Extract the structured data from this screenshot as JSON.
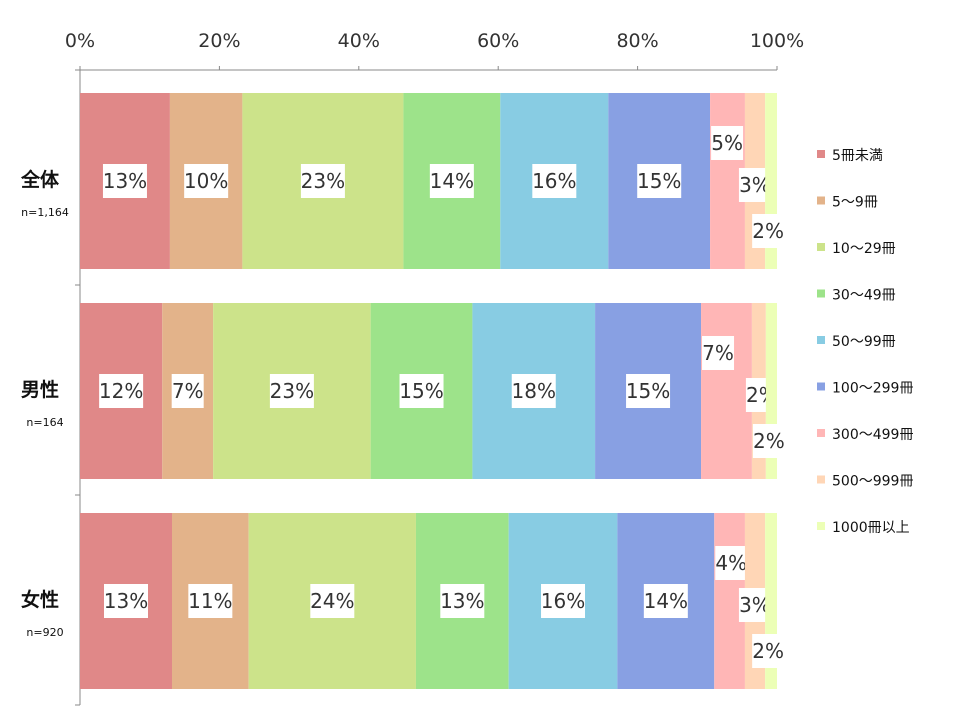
{
  "chart_data": {
    "type": "bar",
    "orientation": "horizontal",
    "stacked": true,
    "percent": true,
    "xlim": [
      0,
      100
    ],
    "x_ticks": [
      "0%",
      "20%",
      "40%",
      "60%",
      "80%",
      "100%"
    ],
    "grid": false,
    "legend_position": "right",
    "categories": [
      {
        "label": "全体",
        "n": "n=1,164"
      },
      {
        "label": "男性",
        "n": "n=164"
      },
      {
        "label": "女性",
        "n": "n=920"
      }
    ],
    "series": [
      {
        "name": "5冊未満",
        "color": "#e08888",
        "values": [
          12.9,
          11.8,
          13.2
        ],
        "labels": [
          "13%",
          "12%",
          "13%"
        ]
      },
      {
        "name": "5～9冊",
        "color": "#e3b38a",
        "values": [
          10.4,
          7.3,
          11.0
        ],
        "labels": [
          "10%",
          "7%",
          "11%"
        ]
      },
      {
        "name": "10～29冊",
        "color": "#cce38a",
        "values": [
          23.1,
          22.6,
          24.0
        ],
        "labels": [
          "23%",
          "23%",
          "24%"
        ]
      },
      {
        "name": "30～49冊",
        "color": "#9de38a",
        "values": [
          13.9,
          14.6,
          13.3
        ],
        "labels": [
          "14%",
          "15%",
          "13%"
        ]
      },
      {
        "name": "50～99冊",
        "color": "#88cce3",
        "values": [
          15.5,
          17.6,
          15.6
        ],
        "labels": [
          "16%",
          "18%",
          "16%"
        ]
      },
      {
        "name": "100～299冊",
        "color": "#88a0e3",
        "values": [
          14.6,
          15.2,
          13.9
        ],
        "labels": [
          "15%",
          "15%",
          "14%"
        ]
      },
      {
        "name": "300～499冊",
        "color": "#ffb6b6",
        "values": [
          5.0,
          7.3,
          4.4
        ],
        "labels": [
          "5%",
          "7%",
          "4%"
        ]
      },
      {
        "name": "500～999冊",
        "color": "#ffd6b6",
        "values": [
          2.9,
          2.0,
          2.9
        ],
        "labels": [
          "3%",
          "2%",
          "3%"
        ]
      },
      {
        "name": "1000冊以上",
        "color": "#ecffb6",
        "values": [
          1.7,
          1.6,
          1.7
        ],
        "labels": [
          "2%",
          "2%",
          "2%"
        ]
      }
    ]
  }
}
